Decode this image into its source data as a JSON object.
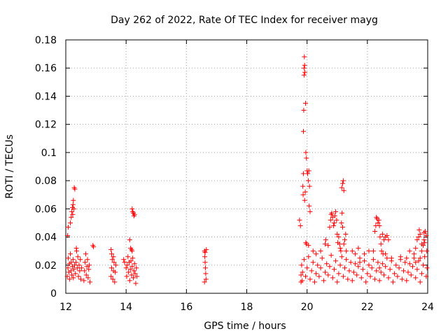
{
  "chart_data": {
    "type": "scatter",
    "title": "Day 262 of 2022, Rate Of TEC Index for receiver mayg",
    "xlabel": "GPS time / hours",
    "ylabel": "ROTI / TECUs",
    "xlim": [
      12,
      24
    ],
    "ylim": [
      0,
      0.18
    ],
    "xticks": [
      12,
      14,
      16,
      18,
      20,
      22,
      24
    ],
    "yticks": [
      0,
      0.02,
      0.04,
      0.06,
      0.08,
      0.1,
      0.12,
      0.14,
      0.16,
      0.18
    ],
    "xtick_labels": [
      "12",
      "14",
      "16",
      "18",
      "20",
      "22",
      "24"
    ],
    "ytick_labels": [
      "0",
      "0.02",
      "0.04",
      "0.06",
      "0.08",
      "0.1",
      "0.12",
      "0.14",
      "0.16",
      "0.18"
    ],
    "grid": true,
    "marker": "+",
    "color": "#ff0000",
    "series": [
      {
        "name": "ROTI",
        "points": [
          [
            12.05,
            0.012
          ],
          [
            12.07,
            0.018
          ],
          [
            12.08,
            0.025
          ],
          [
            12.1,
            0.015
          ],
          [
            12.12,
            0.021
          ],
          [
            12.13,
            0.01
          ],
          [
            12.15,
            0.028
          ],
          [
            12.17,
            0.016
          ],
          [
            12.18,
            0.022
          ],
          [
            12.2,
            0.013
          ],
          [
            12.22,
            0.019
          ],
          [
            12.24,
            0.024
          ],
          [
            12.25,
            0.011
          ],
          [
            12.27,
            0.017
          ],
          [
            12.29,
            0.02
          ],
          [
            12.06,
            0.041
          ],
          [
            12.08,
            0.047
          ],
          [
            12.15,
            0.05
          ],
          [
            12.18,
            0.054
          ],
          [
            12.2,
            0.058
          ],
          [
            12.22,
            0.061
          ],
          [
            12.24,
            0.063
          ],
          [
            12.25,
            0.066
          ],
          [
            12.27,
            0.06
          ],
          [
            12.28,
            0.075
          ],
          [
            12.3,
            0.074
          ],
          [
            12.23,
            0.056
          ],
          [
            12.32,
            0.014
          ],
          [
            12.34,
            0.022
          ],
          [
            12.36,
            0.03
          ],
          [
            12.38,
            0.018
          ],
          [
            12.4,
            0.026
          ],
          [
            12.42,
            0.012
          ],
          [
            12.44,
            0.02
          ],
          [
            12.46,
            0.016
          ],
          [
            12.48,
            0.024
          ],
          [
            12.35,
            0.032
          ],
          [
            12.5,
            0.01
          ],
          [
            12.52,
            0.018
          ],
          [
            12.6,
            0.009
          ],
          [
            12.62,
            0.016
          ],
          [
            12.64,
            0.022
          ],
          [
            12.66,
            0.028
          ],
          [
            12.68,
            0.013
          ],
          [
            12.7,
            0.019
          ],
          [
            12.72,
            0.024
          ],
          [
            12.74,
            0.011
          ],
          [
            12.76,
            0.017
          ],
          [
            12.78,
            0.02
          ],
          [
            12.8,
            0.008
          ],
          [
            12.92,
            0.033
          ],
          [
            12.9,
            0.034
          ],
          [
            13.5,
            0.012
          ],
          [
            13.52,
            0.018
          ],
          [
            13.54,
            0.024
          ],
          [
            13.56,
            0.01
          ],
          [
            13.58,
            0.016
          ],
          [
            13.6,
            0.022
          ],
          [
            13.62,
            0.008
          ],
          [
            13.64,
            0.015
          ],
          [
            13.66,
            0.02
          ],
          [
            13.5,
            0.031
          ],
          [
            13.52,
            0.028
          ],
          [
            13.58,
            0.026
          ],
          [
            13.92,
            0.024
          ],
          [
            13.95,
            0.022
          ],
          [
            14,
            0.018
          ],
          [
            14.02,
            0.012
          ],
          [
            14.04,
            0.02
          ],
          [
            14.06,
            0.026
          ],
          [
            14.08,
            0.015
          ],
          [
            14.1,
            0.022
          ],
          [
            14.12,
            0.009
          ],
          [
            14.14,
            0.017
          ],
          [
            14.16,
            0.023
          ],
          [
            14.18,
            0.013
          ],
          [
            14.2,
            0.019
          ],
          [
            14.22,
            0.025
          ],
          [
            14.24,
            0.011
          ],
          [
            14.26,
            0.016
          ],
          [
            14.28,
            0.021
          ],
          [
            14.3,
            0.014
          ],
          [
            14.32,
            0.007
          ],
          [
            14.34,
            0.018
          ],
          [
            14.36,
            0.012
          ],
          [
            14.12,
            0.038
          ],
          [
            14.15,
            0.032
          ],
          [
            14.18,
            0.031
          ],
          [
            14.2,
            0.06
          ],
          [
            14.22,
            0.058
          ],
          [
            14.24,
            0.057
          ],
          [
            14.26,
            0.055
          ],
          [
            14.28,
            0.056
          ],
          [
            14.2,
            0.03
          ],
          [
            16.6,
            0.03
          ],
          [
            16.61,
            0.026
          ],
          [
            16.62,
            0.022
          ],
          [
            16.63,
            0.018
          ],
          [
            16.64,
            0.014
          ],
          [
            16.65,
            0.01
          ],
          [
            16.62,
            0.029
          ],
          [
            16.66,
            0.031
          ],
          [
            16.6,
            0.008
          ],
          [
            19.75,
            0.052
          ],
          [
            19.78,
            0.048
          ],
          [
            19.8,
            0.013
          ],
          [
            19.82,
            0.02
          ],
          [
            19.84,
            0.009
          ],
          [
            19.86,
            0.076
          ],
          [
            19.87,
            0.07
          ],
          [
            19.88,
            0.085
          ],
          [
            19.88,
            0.115
          ],
          [
            19.89,
            0.13
          ],
          [
            19.9,
            0.155
          ],
          [
            19.9,
            0.16
          ],
          [
            19.91,
            0.168
          ],
          [
            19.92,
            0.162
          ],
          [
            19.93,
            0.157
          ],
          [
            19.95,
            0.135
          ],
          [
            19.96,
            0.1
          ],
          [
            19.98,
            0.096
          ],
          [
            20,
            0.087
          ],
          [
            20.02,
            0.085
          ],
          [
            20.04,
            0.08
          ],
          [
            20.06,
            0.087
          ],
          [
            20.08,
            0.076
          ],
          [
            19.92,
            0.066
          ],
          [
            19.94,
            0.072
          ],
          [
            19.96,
            0.036
          ],
          [
            19.98,
            0.035
          ],
          [
            20.05,
            0.034
          ],
          [
            20.07,
            0.062
          ],
          [
            20.1,
            0.058
          ],
          [
            19.8,
            0.008
          ],
          [
            19.85,
            0.015
          ],
          [
            19.9,
            0.024
          ],
          [
            19.95,
            0.012
          ],
          [
            20,
            0.018
          ],
          [
            20.05,
            0.026
          ],
          [
            20.1,
            0.01
          ],
          [
            20.15,
            0.016
          ],
          [
            20.2,
            0.022
          ],
          [
            20.25,
            0.008
          ],
          [
            20.3,
            0.014
          ],
          [
            20.35,
            0.02
          ],
          [
            20.4,
            0.012
          ],
          [
            20.45,
            0.018
          ],
          [
            20.5,
            0.025
          ],
          [
            20.55,
            0.009
          ],
          [
            20.6,
            0.015
          ],
          [
            20.65,
            0.021
          ],
          [
            20.7,
            0.013
          ],
          [
            20.75,
            0.019
          ],
          [
            20.8,
            0.027
          ],
          [
            20.85,
            0.011
          ],
          [
            20.9,
            0.017
          ],
          [
            20.95,
            0.023
          ],
          [
            21,
            0.008
          ],
          [
            21.05,
            0.014
          ],
          [
            21.1,
            0.02
          ],
          [
            21.15,
            0.026
          ],
          [
            21.2,
            0.012
          ],
          [
            21.25,
            0.018
          ],
          [
            21.3,
            0.024
          ],
          [
            21.35,
            0.01
          ],
          [
            21.4,
            0.016
          ],
          [
            21.45,
            0.022
          ],
          [
            21.5,
            0.009
          ],
          [
            21.55,
            0.015
          ],
          [
            21.6,
            0.021
          ],
          [
            21.65,
            0.013
          ],
          [
            21.7,
            0.019
          ],
          [
            21.75,
            0.025
          ],
          [
            21.8,
            0.011
          ],
          [
            21.85,
            0.017
          ],
          [
            21.9,
            0.023
          ],
          [
            21.95,
            0.008
          ],
          [
            22,
            0.014
          ],
          [
            22.05,
            0.02
          ],
          [
            22.1,
            0.012
          ],
          [
            22.15,
            0.018
          ],
          [
            22.2,
            0.024
          ],
          [
            22.25,
            0.01
          ],
          [
            22.3,
            0.016
          ],
          [
            22.35,
            0.022
          ],
          [
            22.4,
            0.009
          ],
          [
            22.45,
            0.015
          ],
          [
            22.5,
            0.021
          ],
          [
            22.55,
            0.013
          ],
          [
            22.6,
            0.019
          ],
          [
            22.65,
            0.025
          ],
          [
            22.7,
            0.011
          ],
          [
            22.75,
            0.017
          ],
          [
            22.8,
            0.023
          ],
          [
            22.85,
            0.008
          ],
          [
            22.9,
            0.014
          ],
          [
            22.95,
            0.02
          ],
          [
            23,
            0.012
          ],
          [
            23.05,
            0.018
          ],
          [
            23.1,
            0.024
          ],
          [
            23.15,
            0.01
          ],
          [
            23.2,
            0.016
          ],
          [
            23.25,
            0.022
          ],
          [
            23.3,
            0.009
          ],
          [
            23.35,
            0.015
          ],
          [
            23.4,
            0.021
          ],
          [
            23.45,
            0.013
          ],
          [
            23.5,
            0.019
          ],
          [
            23.55,
            0.025
          ],
          [
            23.6,
            0.011
          ],
          [
            23.65,
            0.017
          ],
          [
            23.7,
            0.023
          ],
          [
            23.75,
            0.008
          ],
          [
            23.8,
            0.014
          ],
          [
            23.85,
            0.02
          ],
          [
            23.9,
            0.026
          ],
          [
            23.95,
            0.012
          ],
          [
            23.98,
            0.018
          ],
          [
            20.2,
            0.03
          ],
          [
            20.3,
            0.028
          ],
          [
            20.45,
            0.03
          ],
          [
            20.6,
            0.035
          ],
          [
            20.62,
            0.038
          ],
          [
            20.7,
            0.034
          ],
          [
            20.75,
            0.047
          ],
          [
            20.78,
            0.052
          ],
          [
            20.8,
            0.056
          ],
          [
            20.82,
            0.057
          ],
          [
            20.85,
            0.054
          ],
          [
            20.88,
            0.048
          ],
          [
            20.9,
            0.05
          ],
          [
            20.92,
            0.055
          ],
          [
            20.95,
            0.058
          ],
          [
            20.98,
            0.052
          ],
          [
            21,
            0.042
          ],
          [
            21.02,
            0.036
          ],
          [
            21.05,
            0.04
          ],
          [
            21.08,
            0.035
          ],
          [
            21.1,
            0.032
          ],
          [
            21.12,
            0.03
          ],
          [
            21.15,
            0.075
          ],
          [
            21.18,
            0.078
          ],
          [
            21.2,
            0.08
          ],
          [
            21.22,
            0.073
          ],
          [
            21.14,
            0.05
          ],
          [
            21.16,
            0.057
          ],
          [
            21.18,
            0.047
          ],
          [
            21.22,
            0.035
          ],
          [
            21.25,
            0.038
          ],
          [
            21.28,
            0.042
          ],
          [
            21.3,
            0.03
          ],
          [
            21.5,
            0.03
          ],
          [
            21.6,
            0.028
          ],
          [
            21.7,
            0.032
          ],
          [
            21.75,
            0.022
          ],
          [
            21.9,
            0.028
          ],
          [
            22.05,
            0.03
          ],
          [
            22.2,
            0.03
          ],
          [
            22.25,
            0.044
          ],
          [
            22.28,
            0.048
          ],
          [
            22.3,
            0.054
          ],
          [
            22.32,
            0.053
          ],
          [
            22.35,
            0.05
          ],
          [
            22.38,
            0.052
          ],
          [
            22.4,
            0.048
          ],
          [
            22.42,
            0.04
          ],
          [
            22.45,
            0.035
          ],
          [
            22.5,
            0.042
          ],
          [
            22.55,
            0.038
          ],
          [
            22.6,
            0.04
          ],
          [
            22.65,
            0.041
          ],
          [
            22.7,
            0.038
          ],
          [
            22.47,
            0.03
          ],
          [
            22.52,
            0.028
          ],
          [
            22.4,
            0.018
          ],
          [
            22.6,
            0.028
          ],
          [
            22.8,
            0.025
          ],
          [
            23.1,
            0.026
          ],
          [
            23.3,
            0.025
          ],
          [
            23.4,
            0.03
          ],
          [
            23.55,
            0.028
          ],
          [
            23.6,
            0.032
          ],
          [
            23.65,
            0.038
          ],
          [
            23.7,
            0.04
          ],
          [
            23.72,
            0.045
          ],
          [
            23.75,
            0.042
          ],
          [
            23.8,
            0.03
          ],
          [
            23.85,
            0.034
          ],
          [
            23.88,
            0.043
          ],
          [
            23.9,
            0.036
          ],
          [
            23.92,
            0.044
          ],
          [
            23.95,
            0.041
          ],
          [
            23.97,
            0.03
          ],
          [
            23.8,
            0.035
          ],
          [
            23.88,
            0.038
          ],
          [
            23.75,
            0.025
          ],
          [
            23.6,
            0.022
          ]
        ]
      }
    ]
  }
}
